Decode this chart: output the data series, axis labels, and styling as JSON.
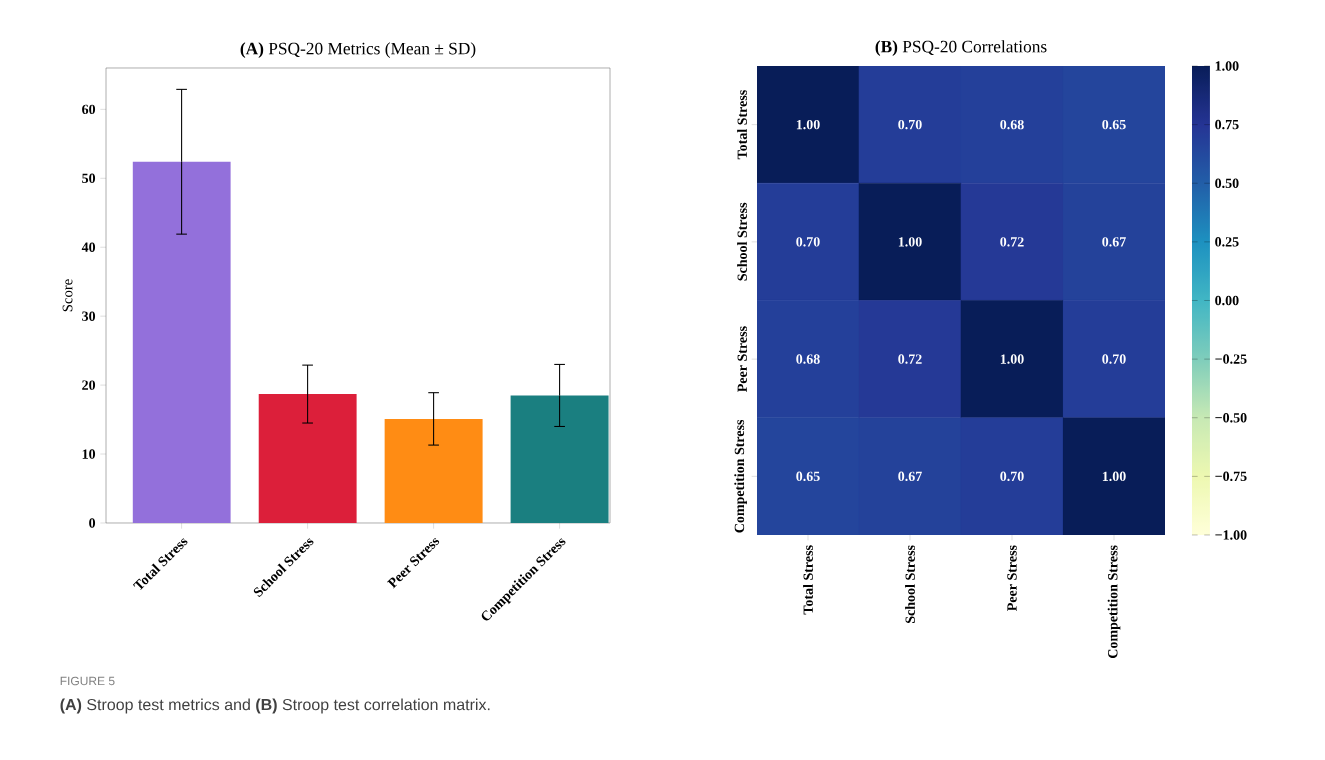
{
  "chart_data": [
    {
      "type": "bar",
      "title": "**(A)** PSQ-20 Metrics (Mean ± SD)",
      "ylabel": "Score",
      "categories": [
        "Total Stress",
        "School Stress",
        "Peer Stress",
        "Competition Stress"
      ],
      "values": [
        52.4,
        18.7,
        15.1,
        18.5
      ],
      "errors": [
        10.5,
        4.2,
        3.8,
        4.5
      ],
      "colors": [
        "#9370db",
        "#dc1f3a",
        "#ff8c14",
        "#1a7f80"
      ],
      "ylim": [
        0,
        66
      ],
      "yticks": [
        0,
        10,
        20,
        30,
        40,
        50,
        60
      ],
      "grid": false,
      "annotations": [
        "FIGURE 5",
        "**(A)** Stroop test metrics and **(B)** Stroop test correlation matrix."
      ]
    },
    {
      "type": "heatmap",
      "title": "**(B)** PSQ-20 Correlations",
      "categories": [
        "Total Stress",
        "School Stress",
        "Peer Stress",
        "Competition Stress"
      ],
      "y_categories": [
        "Total Stress",
        "School Stress",
        "Peer Stress",
        "Competition Stress"
      ],
      "cells": [
        [
          1.0,
          0.7,
          0.68,
          0.65
        ],
        [
          0.7,
          1.0,
          0.72,
          0.67
        ],
        [
          0.68,
          0.72,
          1.0,
          0.7
        ],
        [
          0.65,
          0.67,
          0.7,
          1.0
        ]
      ],
      "cell_labels": [
        [
          "1.00",
          "0.70",
          "0.68",
          "0.65"
        ],
        [
          "0.70",
          "1.00",
          "0.72",
          "0.67"
        ],
        [
          "0.68",
          "0.72",
          "1.00",
          "0.70"
        ],
        [
          "0.65",
          "0.67",
          "0.70",
          "1.00"
        ]
      ],
      "clim": [
        -1,
        1
      ],
      "cticks": [
        {
          "value": 1,
          "label": "1.00"
        },
        {
          "value": 0.75,
          "label": "0.75"
        },
        {
          "value": 0.5,
          "label": "0.50"
        },
        {
          "value": 0.25,
          "label": "0.25"
        },
        {
          "value": 0,
          "label": "0.00"
        },
        {
          "value": -0.25,
          "label": "−0.25"
        },
        {
          "value": -0.5,
          "label": "−0.50"
        },
        {
          "value": -0.75,
          "label": "−0.75"
        },
        {
          "value": -1,
          "label": "−1.00"
        }
      ]
    }
  ]
}
